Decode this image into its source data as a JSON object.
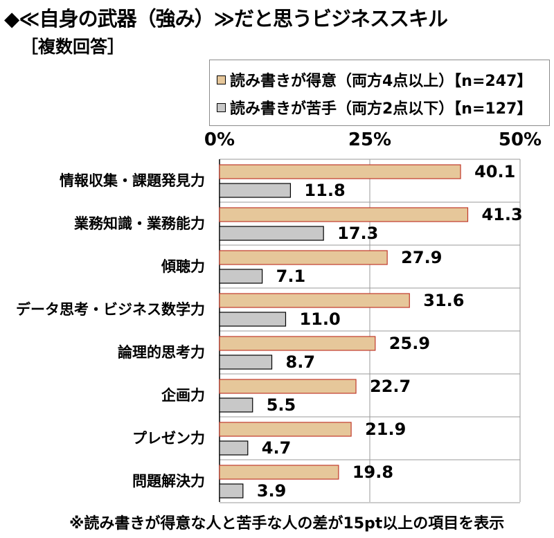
{
  "title": "◆≪自身の武器（強み）≫だと思うビジネススキル",
  "subtitle": "［複数回答］",
  "footnote": "※読み書きが得意な人と苦手な人の差が15pt以上の項目を表示",
  "colors": {
    "series1": "#e6c79a",
    "series1_border": "#c0392b",
    "series2": "#c8c8c8",
    "series2_border": "#000000",
    "grid": "#9a9a9a"
  },
  "chart_data": {
    "type": "bar",
    "orientation": "horizontal",
    "categories": [
      "情報収集・課題発見力",
      "業務知識・業務能力",
      "傾聴力",
      "データ思考・ビジネス数学力",
      "論理的思考力",
      "企画力",
      "プレゼン力",
      "問題解決力"
    ],
    "series": [
      {
        "name": "読み書きが得意（両方4点以上）【n=247】",
        "values": [
          40.1,
          41.3,
          27.9,
          31.6,
          25.9,
          22.7,
          21.9,
          19.8
        ]
      },
      {
        "name": "読み書きが苦手（両方2点以下）【n=127】",
        "values": [
          11.8,
          17.3,
          7.1,
          11.0,
          8.7,
          5.5,
          4.7,
          3.9
        ]
      }
    ],
    "xlim": [
      0,
      50
    ],
    "xticks": [
      "0%",
      "25%",
      "50%"
    ],
    "xtick_values": [
      0,
      25,
      50
    ],
    "legend_position": "top-right",
    "grid": true
  }
}
